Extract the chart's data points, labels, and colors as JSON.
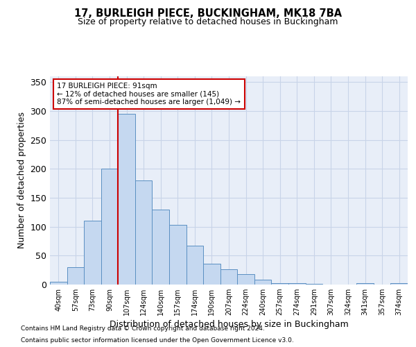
{
  "title": "17, BURLEIGH PIECE, BUCKINGHAM, MK18 7BA",
  "subtitle": "Size of property relative to detached houses in Buckingham",
  "xlabel": "Distribution of detached houses by size in Buckingham",
  "ylabel": "Number of detached properties",
  "categories": [
    "40sqm",
    "57sqm",
    "73sqm",
    "90sqm",
    "107sqm",
    "124sqm",
    "140sqm",
    "157sqm",
    "174sqm",
    "190sqm",
    "207sqm",
    "224sqm",
    "240sqm",
    "257sqm",
    "274sqm",
    "291sqm",
    "307sqm",
    "324sqm",
    "341sqm",
    "357sqm",
    "374sqm"
  ],
  "bar_values": [
    5,
    30,
    110,
    200,
    295,
    180,
    130,
    103,
    67,
    36,
    27,
    18,
    8,
    3,
    2,
    1,
    0,
    0,
    2,
    0,
    2
  ],
  "bar_color": "#c5d8f0",
  "bar_edge_color": "#5a8fc2",
  "grid_color": "#c8d4e8",
  "background_color": "#e8eef8",
  "vline_x": 3.5,
  "vline_color": "#cc0000",
  "annotation_text": "17 BURLEIGH PIECE: 91sqm\n← 12% of detached houses are smaller (145)\n87% of semi-detached houses are larger (1,049) →",
  "annotation_box_color": "#cc0000",
  "ylim": [
    0,
    360
  ],
  "yticks": [
    0,
    50,
    100,
    150,
    200,
    250,
    300,
    350
  ],
  "footer1": "Contains HM Land Registry data © Crown copyright and database right 2024.",
  "footer2": "Contains public sector information licensed under the Open Government Licence v3.0."
}
